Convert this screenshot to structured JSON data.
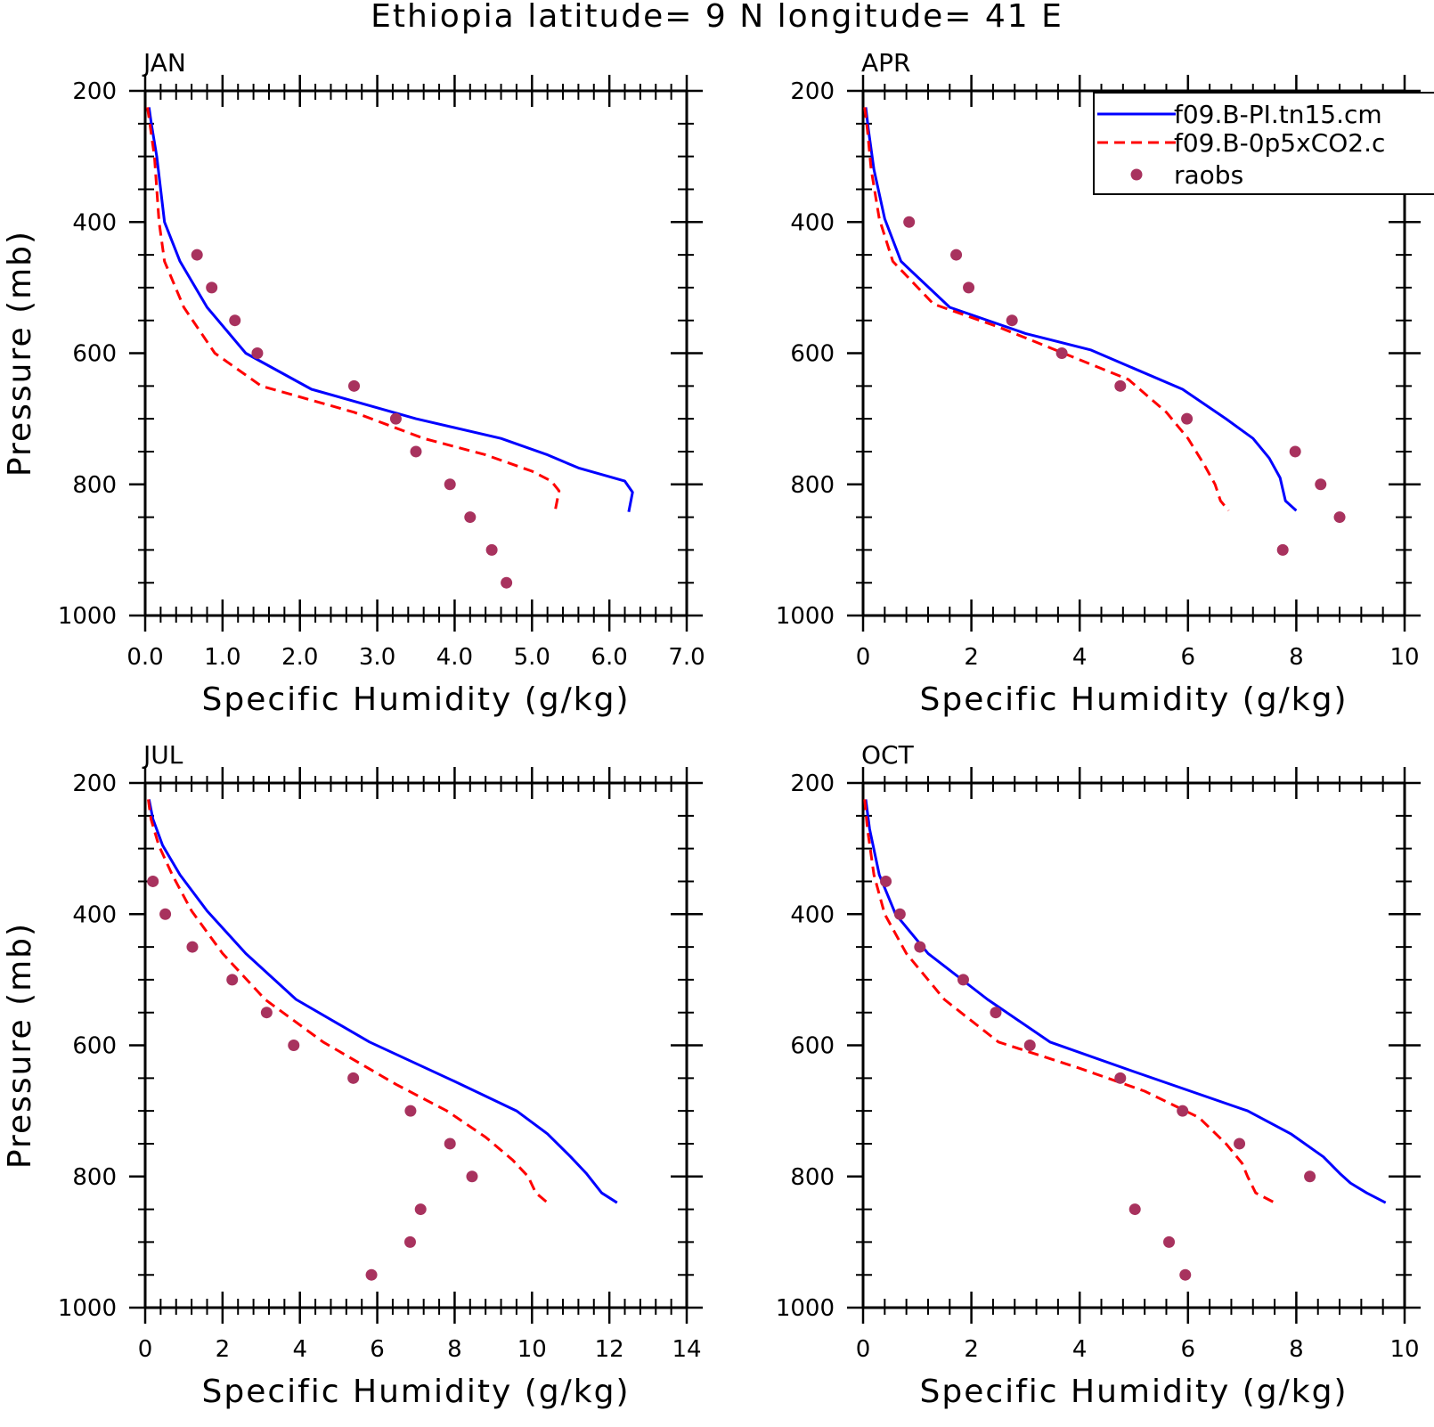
{
  "figure": {
    "title": "Ethiopia  latitude= 9 N longitude= 41 E"
  },
  "legend": {
    "placement": "top-right of APR panel",
    "entries": [
      {
        "label": "f09.B-PI.tn15.cm",
        "style": "solid",
        "color": "#0000ff"
      },
      {
        "label": "f09.B-0p5xCO2.c",
        "style": "dashed",
        "color": "#ff0000"
      },
      {
        "label": "raobs",
        "style": "dots",
        "color": "#a8325e"
      }
    ]
  },
  "colors": {
    "model_pi": "#0000ff",
    "model_co2": "#ff0000",
    "raobs": "#a8325e",
    "axes": "#000000"
  },
  "chart_data": [
    {
      "type": "line",
      "title": "JAN",
      "xlabel": "Specific Humidity (g/kg)",
      "ylabel": "Pressure (mb)",
      "xlim": [
        0,
        7
      ],
      "ylim": [
        1000,
        200
      ],
      "y_inverted": true,
      "xticks": [
        0,
        1,
        2,
        3,
        4,
        5,
        6,
        7
      ],
      "xtick_labels": [
        "0.0",
        "1.0",
        "2.0",
        "3.0",
        "4.0",
        "5.0",
        "6.0",
        "7.0"
      ],
      "yticks": [
        200,
        400,
        600,
        800,
        1000
      ],
      "ytick_labels": [
        "200",
        "400",
        "600",
        "800",
        "1000"
      ],
      "series": [
        {
          "name": "f09.B-PI.tn15.cm",
          "style": "solid",
          "x": [
            0.05,
            0.08,
            0.15,
            0.25,
            0.45,
            0.8,
            1.3,
            2.15,
            3.5,
            4.6,
            5.2,
            5.6,
            5.9,
            6.2,
            6.3,
            6.25
          ],
          "y": [
            225,
            250,
            300,
            400,
            460,
            530,
            600,
            655,
            700,
            730,
            755,
            775,
            785,
            795,
            812,
            842
          ]
        },
        {
          "name": "f09.B-0p5xCO2.c",
          "style": "dashed",
          "x": [
            0.03,
            0.06,
            0.12,
            0.18,
            0.25,
            0.5,
            0.9,
            1.5,
            2.7,
            3.6,
            4.4,
            5.0,
            5.25,
            5.35,
            5.3
          ],
          "y": [
            225,
            250,
            300,
            400,
            460,
            530,
            600,
            650,
            690,
            730,
            755,
            780,
            795,
            810,
            840
          ]
        },
        {
          "name": "raobs",
          "style": "dots",
          "x": [
            0.67,
            0.86,
            1.16,
            1.45,
            2.7,
            3.24,
            3.5,
            3.94,
            4.2,
            4.48,
            4.67
          ],
          "y": [
            450,
            500,
            550,
            600,
            650,
            700,
            750,
            800,
            850,
            900,
            950
          ]
        }
      ]
    },
    {
      "type": "line",
      "title": "APR",
      "xlabel": "Specific Humidity (g/kg)",
      "ylabel": "",
      "xlim": [
        0,
        10
      ],
      "ylim": [
        1000,
        200
      ],
      "y_inverted": true,
      "xticks": [
        0,
        2,
        4,
        6,
        8,
        10
      ],
      "xtick_labels": [
        "0",
        "2",
        "4",
        "6",
        "8",
        "10"
      ],
      "yticks": [
        200,
        400,
        600,
        800,
        1000
      ],
      "ytick_labels": [
        "200",
        "400",
        "600",
        "800",
        "1000"
      ],
      "series": [
        {
          "name": "f09.B-PI.tn15.cm",
          "style": "solid",
          "x": [
            0.05,
            0.1,
            0.2,
            0.4,
            0.7,
            1.6,
            3.0,
            4.2,
            5.9,
            6.7,
            7.2,
            7.5,
            7.7,
            7.8,
            8.0
          ],
          "y": [
            225,
            260,
            320,
            395,
            460,
            530,
            570,
            595,
            655,
            700,
            730,
            760,
            790,
            825,
            840
          ]
        },
        {
          "name": "f09.B-0p5xCO2.c",
          "style": "dashed",
          "x": [
            0.03,
            0.08,
            0.15,
            0.3,
            0.55,
            1.3,
            2.5,
            3.7,
            4.9,
            5.6,
            6.0,
            6.3,
            6.5,
            6.6,
            6.75
          ],
          "y": [
            225,
            260,
            320,
            395,
            460,
            525,
            560,
            600,
            640,
            690,
            730,
            770,
            800,
            825,
            840
          ]
        },
        {
          "name": "raobs",
          "style": "dots",
          "x": [
            0.85,
            1.72,
            1.95,
            2.75,
            3.67,
            4.75,
            5.98,
            7.98,
            8.45,
            8.8,
            7.75
          ],
          "y": [
            400,
            450,
            500,
            550,
            600,
            650,
            700,
            750,
            800,
            850,
            900
          ]
        }
      ]
    },
    {
      "type": "line",
      "title": "JUL",
      "xlabel": "Specific Humidity (g/kg)",
      "ylabel": "Pressure (mb)",
      "xlim": [
        0,
        14
      ],
      "ylim": [
        1000,
        200
      ],
      "y_inverted": true,
      "xticks": [
        0,
        2,
        4,
        6,
        8,
        10,
        12,
        14
      ],
      "xtick_labels": [
        "0",
        "2",
        "4",
        "6",
        "8",
        "10",
        "12",
        "14"
      ],
      "yticks": [
        200,
        400,
        600,
        800,
        1000
      ],
      "ytick_labels": [
        "200",
        "400",
        "600",
        "800",
        "1000"
      ],
      "series": [
        {
          "name": "f09.B-PI.tn15.cm",
          "style": "solid",
          "x": [
            0.1,
            0.2,
            0.45,
            0.9,
            1.6,
            2.6,
            3.9,
            5.8,
            8.0,
            9.6,
            10.4,
            11.0,
            11.4,
            11.8,
            12.2
          ],
          "y": [
            225,
            255,
            295,
            340,
            395,
            460,
            530,
            595,
            655,
            700,
            735,
            770,
            795,
            825,
            840
          ]
        },
        {
          "name": "f09.B-0p5xCO2.c",
          "style": "dashed",
          "x": [
            0.08,
            0.15,
            0.35,
            0.7,
            1.2,
            2.0,
            3.1,
            4.6,
            6.5,
            7.8,
            8.8,
            9.5,
            9.9,
            10.1,
            10.4
          ],
          "y": [
            225,
            255,
            295,
            340,
            395,
            460,
            530,
            595,
            660,
            700,
            740,
            775,
            800,
            825,
            840
          ]
        },
        {
          "name": "raobs",
          "style": "dots",
          "x": [
            0.2,
            0.52,
            1.22,
            2.25,
            3.14,
            3.84,
            5.38,
            6.86,
            7.88,
            8.45,
            7.12,
            6.85,
            5.85
          ],
          "y": [
            350,
            400,
            450,
            500,
            550,
            600,
            650,
            700,
            750,
            800,
            850,
            900,
            950
          ]
        }
      ]
    },
    {
      "type": "line",
      "title": "OCT",
      "xlabel": "Specific Humidity (g/kg)",
      "ylabel": "",
      "xlim": [
        0,
        10
      ],
      "ylim": [
        1000,
        200
      ],
      "y_inverted": true,
      "xticks": [
        0,
        2,
        4,
        6,
        8,
        10
      ],
      "xtick_labels": [
        "0",
        "2",
        "4",
        "6",
        "8",
        "10"
      ],
      "yticks": [
        200,
        400,
        600,
        800,
        1000
      ],
      "ytick_labels": [
        "200",
        "400",
        "600",
        "800",
        "1000"
      ],
      "series": [
        {
          "name": "f09.B-PI.tn15.cm",
          "style": "solid",
          "x": [
            0.05,
            0.12,
            0.3,
            0.6,
            1.2,
            2.3,
            3.45,
            5.0,
            7.1,
            7.9,
            8.5,
            8.8,
            9.0,
            9.3,
            9.65
          ],
          "y": [
            225,
            270,
            340,
            400,
            460,
            530,
            595,
            640,
            700,
            735,
            770,
            795,
            810,
            825,
            840
          ]
        },
        {
          "name": "f09.B-0p5xCO2.c",
          "style": "dashed",
          "x": [
            0.03,
            0.08,
            0.2,
            0.4,
            0.8,
            1.5,
            2.5,
            4.0,
            5.2,
            6.2,
            6.7,
            7.0,
            7.1,
            7.25,
            7.6
          ],
          "y": [
            225,
            270,
            340,
            400,
            460,
            530,
            595,
            635,
            670,
            710,
            750,
            780,
            800,
            825,
            840
          ]
        },
        {
          "name": "raobs",
          "style": "dots",
          "x": [
            0.42,
            0.68,
            1.05,
            1.85,
            2.45,
            3.08,
            4.75,
            5.9,
            6.95,
            8.25,
            5.02,
            5.65,
            5.95
          ],
          "y": [
            350,
            400,
            450,
            500,
            550,
            600,
            650,
            700,
            750,
            800,
            850,
            900,
            950
          ]
        }
      ]
    }
  ]
}
